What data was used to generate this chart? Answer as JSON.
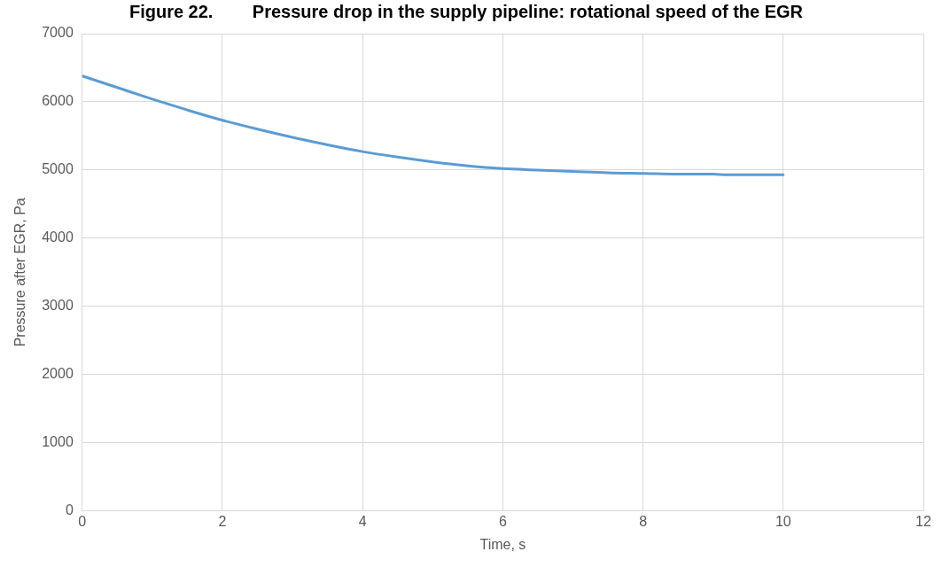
{
  "chart_data": {
    "type": "line",
    "title": "Figure 22.        Pressure drop in the supply pipeline: rotational speed of the EGR",
    "xlabel": "Time, s",
    "ylabel": "Pressure after EGR, Pa",
    "x": [
      0,
      0.5,
      1,
      1.5,
      2,
      2.5,
      3,
      3.5,
      4,
      4.5,
      5,
      5.5,
      6,
      6.5,
      7,
      7.5,
      8,
      8.5,
      9,
      9.2,
      9.5,
      10
    ],
    "series": [
      {
        "color": "#5b9bd5",
        "values": [
          6380,
          6210,
          6040,
          5880,
          5730,
          5600,
          5480,
          5370,
          5270,
          5190,
          5120,
          5060,
          5020,
          5000,
          4980,
          4960,
          4950,
          4940,
          4940,
          4930,
          4930,
          4930
        ]
      }
    ],
    "xlim": [
      0,
      12
    ],
    "xticks": [
      0,
      2,
      4,
      6,
      8,
      10,
      12
    ],
    "ylim": [
      0,
      7000
    ],
    "yticks": [
      0,
      1000,
      2000,
      3000,
      4000,
      5000,
      6000,
      7000
    ],
    "grid": true,
    "legend": false,
    "marker": "none",
    "line_style": "solid"
  }
}
